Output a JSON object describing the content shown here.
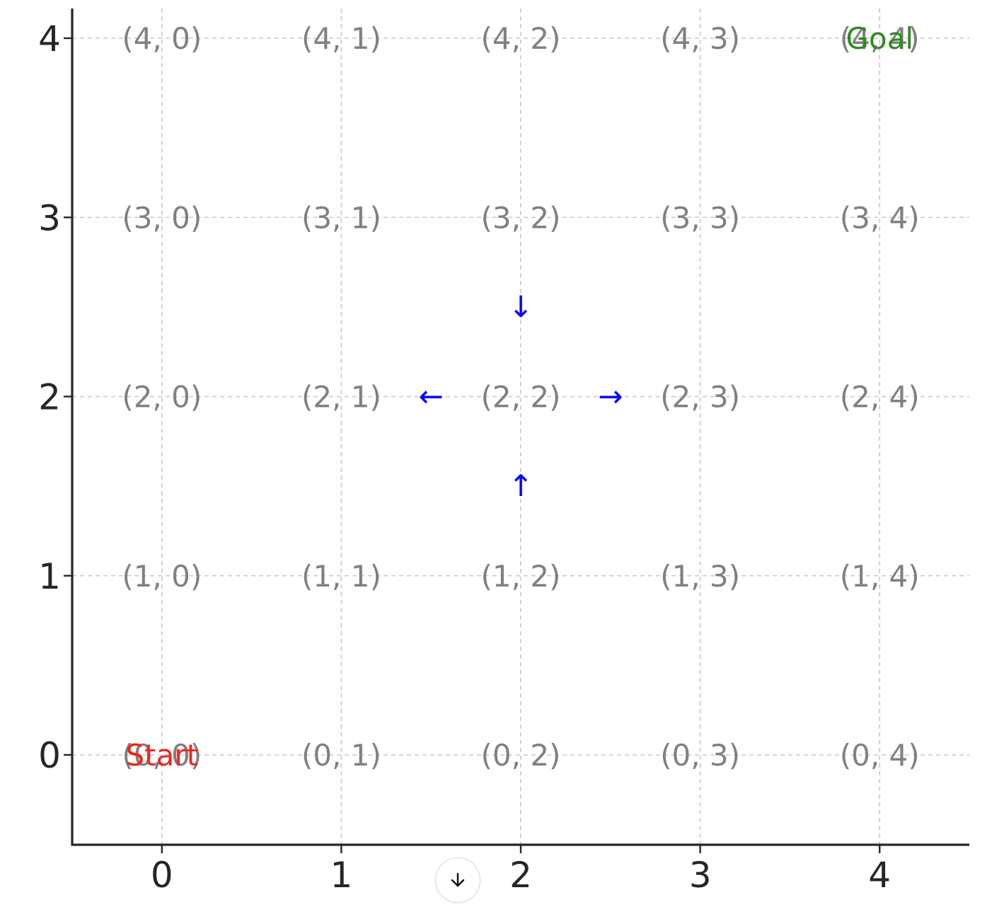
{
  "chart_data": {
    "type": "scatter",
    "title": "",
    "xlabel": "",
    "ylabel": "",
    "xlim": [
      -0.5,
      4.5
    ],
    "ylim": [
      -0.5,
      4.0
    ],
    "x_ticks": [
      0,
      1,
      2,
      3,
      4
    ],
    "y_ticks": [
      0,
      1,
      2,
      3,
      4
    ],
    "grid": true,
    "cells": [
      {
        "x": 0,
        "y": 0,
        "label": "(0, 0)"
      },
      {
        "x": 1,
        "y": 0,
        "label": "(0, 1)"
      },
      {
        "x": 2,
        "y": 0,
        "label": "(0, 2)"
      },
      {
        "x": 3,
        "y": 0,
        "label": "(0, 3)"
      },
      {
        "x": 4,
        "y": 0,
        "label": "(0, 4)"
      },
      {
        "x": 0,
        "y": 1,
        "label": "(1, 0)"
      },
      {
        "x": 1,
        "y": 1,
        "label": "(1, 1)"
      },
      {
        "x": 2,
        "y": 1,
        "label": "(1, 2)"
      },
      {
        "x": 3,
        "y": 1,
        "label": "(1, 3)"
      },
      {
        "x": 4,
        "y": 1,
        "label": "(1, 4)"
      },
      {
        "x": 0,
        "y": 2,
        "label": "(2, 0)"
      },
      {
        "x": 1,
        "y": 2,
        "label": "(2, 1)"
      },
      {
        "x": 2,
        "y": 2,
        "label": "(2, 2)"
      },
      {
        "x": 3,
        "y": 2,
        "label": "(2, 3)"
      },
      {
        "x": 4,
        "y": 2,
        "label": "(2, 4)"
      },
      {
        "x": 0,
        "y": 3,
        "label": "(3, 0)"
      },
      {
        "x": 1,
        "y": 3,
        "label": "(3, 1)"
      },
      {
        "x": 2,
        "y": 3,
        "label": "(3, 2)"
      },
      {
        "x": 3,
        "y": 3,
        "label": "(3, 3)"
      },
      {
        "x": 4,
        "y": 3,
        "label": "(3, 4)"
      },
      {
        "x": 0,
        "y": 4,
        "label": "(4, 0)"
      },
      {
        "x": 1,
        "y": 4,
        "label": "(4, 1)"
      },
      {
        "x": 2,
        "y": 4,
        "label": "(4, 2)"
      },
      {
        "x": 3,
        "y": 4,
        "label": "(4, 3)"
      },
      {
        "x": 4,
        "y": 4,
        "label": "(4, 4)"
      }
    ],
    "markers": [
      {
        "x": 0,
        "y": 0,
        "text": "Start",
        "color": "#e8291c"
      },
      {
        "x": 4,
        "y": 4,
        "text": "Goal",
        "color": "#2e8b1f"
      }
    ],
    "arrows": [
      {
        "x": 2,
        "y": 2.5,
        "glyph": "↓",
        "direction": "down",
        "color": "#0000ff"
      },
      {
        "x": 2,
        "y": 1.5,
        "glyph": "↑",
        "direction": "up",
        "color": "#0000ff"
      },
      {
        "x": 1.5,
        "y": 2,
        "glyph": "←",
        "direction": "left",
        "color": "#0000ff"
      },
      {
        "x": 2.5,
        "y": 2,
        "glyph": "→",
        "direction": "right",
        "color": "#0000ff"
      }
    ],
    "colors": {
      "cell_label": "#808080",
      "grid": "#c8c8c8",
      "axis": "#262626",
      "tick_label": "#262626"
    }
  },
  "ui": {
    "scroll_button_icon": "arrow-down-icon"
  }
}
